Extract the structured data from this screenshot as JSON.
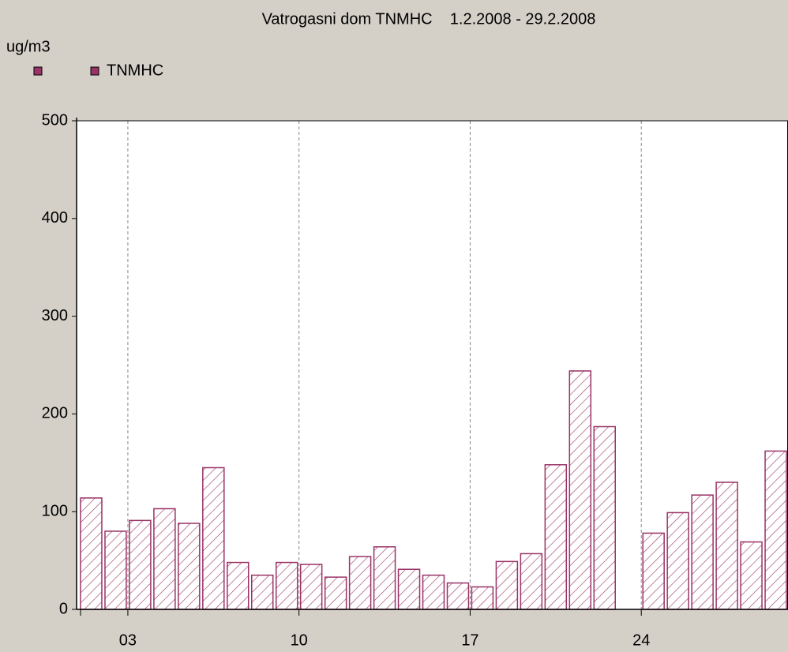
{
  "chart_data": {
    "type": "bar",
    "title": "Vatrogasni dom TNMHC    1.2.2008 - 29.2.2008",
    "y_label": "ug/m3",
    "categories": [
      null,
      null,
      "03",
      null,
      null,
      null,
      null,
      null,
      null,
      "10",
      null,
      null,
      null,
      null,
      null,
      null,
      "17",
      null,
      null,
      null,
      null,
      null,
      null,
      "24",
      null,
      null,
      null,
      null,
      null
    ],
    "series": [
      {
        "name": "TNMHC",
        "color": "#993366",
        "values": [
          114,
          80,
          91,
          103,
          88,
          145,
          48,
          35,
          48,
          46,
          33,
          54,
          64,
          41,
          35,
          27,
          23,
          49,
          57,
          148,
          244,
          187,
          null,
          78,
          99,
          117,
          130,
          69,
          162
        ]
      }
    ],
    "ylim": [
      0,
      500
    ],
    "yticks": [
      0,
      100,
      200,
      300,
      400,
      500
    ],
    "grid": true
  }
}
